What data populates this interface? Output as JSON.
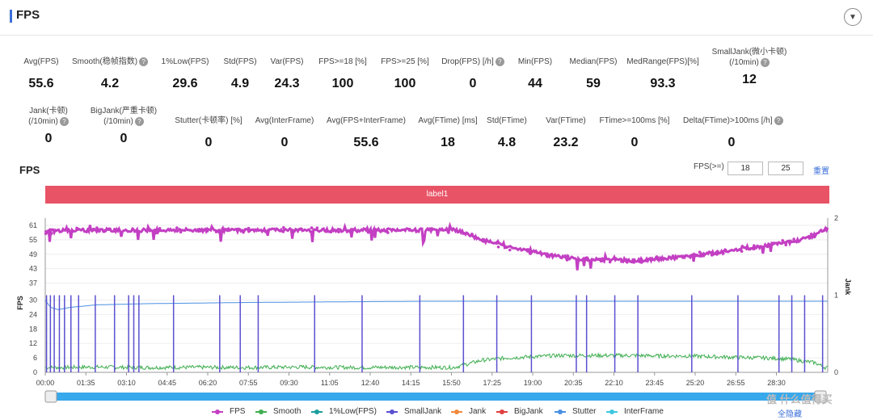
{
  "header": {
    "title": "FPS"
  },
  "metrics_row1": [
    {
      "label": "Avg(FPS)",
      "value": "55.6",
      "help": false
    },
    {
      "label": "Smooth(稳帧指数)",
      "value": "4.2",
      "help": true
    },
    {
      "label": "1%Low(FPS)",
      "value": "29.6",
      "help": false
    },
    {
      "label": "Std(FPS)",
      "value": "4.9",
      "help": false
    },
    {
      "label": "Var(FPS)",
      "value": "24.3",
      "help": false
    },
    {
      "label": "FPS>=18 [%]",
      "value": "100",
      "help": false
    },
    {
      "label": "FPS>=25 [%]",
      "value": "100",
      "help": false
    },
    {
      "label": "Drop(FPS) [/h]",
      "value": "0",
      "help": true
    },
    {
      "label": "Min(FPS)",
      "value": "44",
      "help": false
    },
    {
      "label": "Median(FPS)",
      "value": "59",
      "help": false
    },
    {
      "label": "MedRange(FPS)[%]",
      "value": "93.3",
      "help": false
    },
    {
      "label": "SmallJank(微小卡顿)",
      "label2": "(/10min)",
      "value": "12",
      "help": true
    }
  ],
  "metrics_row2": [
    {
      "label": "Jank(卡顿)",
      "label2": "(/10min)",
      "value": "0",
      "help": true
    },
    {
      "label": "BigJank(严重卡顿)",
      "label2": "(/10min)",
      "value": "0",
      "help": true
    },
    {
      "label": "Stutter(卡顿率) [%]",
      "value": "0",
      "help": false
    },
    {
      "label": "Avg(InterFrame)",
      "value": "0",
      "help": false
    },
    {
      "label": "Avg(FPS+InterFrame)",
      "value": "55.6",
      "help": false
    },
    {
      "label": "Avg(FTime) [ms]",
      "value": "18",
      "help": false
    },
    {
      "label": "Std(FTime)",
      "value": "4.8",
      "help": false
    },
    {
      "label": "Var(FTime)",
      "value": "23.2",
      "help": false
    },
    {
      "label": "FTime>=100ms [%]",
      "value": "0",
      "help": false
    },
    {
      "label": "Delta(FTime)>100ms [/h]",
      "value": "0",
      "help": true
    }
  ],
  "chart_header": {
    "title": "FPS",
    "threshold_label": "FPS(>=)",
    "threshold1": "18",
    "threshold2": "25",
    "reset": "重置",
    "label_bar": "label1"
  },
  "colors": {
    "fps": "#c33fc3",
    "smooth": "#3fae50",
    "low1": "#1a9d9d",
    "smalljank": "#5a50d0",
    "jank": "#f08a3c",
    "bigjank": "#e04040",
    "stutter": "#4a90e2",
    "interframe": "#3ec8e0",
    "label_bar": "#e85466",
    "scrollbar": "#38a8ec"
  },
  "chart_data": {
    "type": "line",
    "ylabel": "FPS",
    "y2label": "Jank",
    "ylim": [
      0,
      64
    ],
    "y2lim": [
      0,
      2
    ],
    "yticks": [
      0,
      6,
      12,
      18,
      24,
      30,
      37,
      43,
      49,
      55,
      61
    ],
    "y2ticks": [
      0,
      1,
      2
    ],
    "xlim_min": [
      0,
      30.5
    ],
    "xticks": [
      "00:00",
      "01:35",
      "03:10",
      "04:45",
      "06:20",
      "07:55",
      "09:30",
      "11:05",
      "12:40",
      "14:15",
      "15:50",
      "17:25",
      "19:00",
      "20:35",
      "22:10",
      "23:45",
      "25:20",
      "26:55",
      "28:30"
    ],
    "series": [
      {
        "name": "FPS",
        "x_min": [
          0,
          1,
          2,
          4,
          6,
          8,
          10,
          12,
          14,
          15.9,
          16.3,
          17,
          18,
          19,
          20,
          21,
          22,
          23,
          24,
          25,
          26,
          27,
          28,
          29,
          29.8,
          30.4
        ],
        "values": [
          58.5,
          59,
          59,
          59,
          59,
          59,
          59,
          59,
          59,
          59,
          58,
          55,
          52,
          50,
          48,
          47,
          46.5,
          46.5,
          47,
          48,
          49.5,
          51,
          52.5,
          54,
          56,
          59.5
        ]
      },
      {
        "name": "Smooth",
        "x_min": [
          0,
          2,
          4,
          6,
          8,
          10,
          12,
          14,
          15.9,
          16.3,
          17,
          18,
          19,
          20,
          21,
          22,
          23,
          24,
          25,
          26,
          27,
          28,
          29,
          30,
          30.4
        ],
        "values": [
          2,
          2.2,
          2,
          2.1,
          2,
          2.2,
          2,
          2.1,
          2,
          3,
          5,
          6,
          6.5,
          7,
          7,
          7,
          7,
          6.8,
          6.8,
          6.5,
          6.2,
          6,
          5.5,
          4,
          2
        ]
      },
      {
        "name": "1%Low(FPS)",
        "x_min": [],
        "values": []
      },
      {
        "name": "SmallJank",
        "x_min": [
          0.05,
          0.2,
          0.35,
          0.55,
          0.75,
          1.0,
          1.3,
          1.95,
          2.7,
          3.25,
          3.45,
          3.65,
          5.0,
          6.8,
          7.6,
          8.3,
          10.5,
          12.35,
          14.6,
          16.3,
          17.6,
          18.95,
          20.7,
          21.1,
          22.2,
          23.1,
          25.2,
          27.0,
          28.6,
          29.1,
          29.6,
          30.3
        ],
        "values": [
          1,
          1,
          1,
          1,
          1,
          1,
          1,
          1,
          1,
          1,
          1,
          1,
          1,
          1,
          1,
          1,
          1,
          1,
          1,
          1,
          1,
          1,
          1,
          1,
          1,
          1,
          1,
          1,
          1,
          1,
          1,
          1
        ]
      },
      {
        "name": "Jank",
        "x_min": [],
        "values": []
      },
      {
        "name": "BigJank",
        "x_min": [],
        "values": []
      },
      {
        "name": "Stutter",
        "x_min": [
          0,
          0.2,
          0.5,
          1,
          2,
          4,
          8,
          15,
          30.4
        ],
        "values": [
          30,
          27,
          26,
          27,
          28,
          28.5,
          29,
          29.5,
          29.5
        ]
      },
      {
        "name": "InterFrame",
        "x_min": [],
        "values": []
      }
    ]
  },
  "legend": {
    "fps": "FPS",
    "smooth": "Smooth",
    "low1": "1%Low(FPS)",
    "smalljank": "SmallJank",
    "jank": "Jank",
    "bigjank": "BigJank",
    "stutter": "Stutter",
    "interframe": "InterFrame"
  },
  "hide_all": "全隐藏",
  "watermark": "值 什么值得买"
}
